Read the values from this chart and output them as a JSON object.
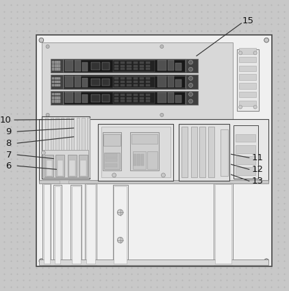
{
  "fig_bg": "#c8c8c8",
  "plate_bg": "#f0f0f0",
  "dot_color": "#aaaaaa",
  "line_color": "#444444",
  "dark": "#1a1a1a",
  "mid": "#888888",
  "light": "#cccccc",
  "lighter": "#e0e0e0",
  "white": "#f8f8f8",
  "label_pts": {
    "6": [
      0.03,
      0.43,
      0.06,
      0.43,
      0.195,
      0.418
    ],
    "7": [
      0.03,
      0.468,
      0.06,
      0.468,
      0.185,
      0.455
    ],
    "8": [
      0.03,
      0.508,
      0.06,
      0.508,
      0.255,
      0.53
    ],
    "9": [
      0.03,
      0.548,
      0.06,
      0.548,
      0.255,
      0.56
    ],
    "10": [
      0.018,
      0.588,
      0.05,
      0.588,
      0.255,
      0.59
    ],
    "11": [
      0.89,
      0.458,
      0.862,
      0.458,
      0.8,
      0.47
    ],
    "12": [
      0.89,
      0.418,
      0.862,
      0.418,
      0.8,
      0.435
    ],
    "13": [
      0.89,
      0.378,
      0.862,
      0.378,
      0.8,
      0.4
    ],
    "15": [
      0.858,
      0.928,
      0.835,
      0.92,
      0.68,
      0.808
    ]
  }
}
